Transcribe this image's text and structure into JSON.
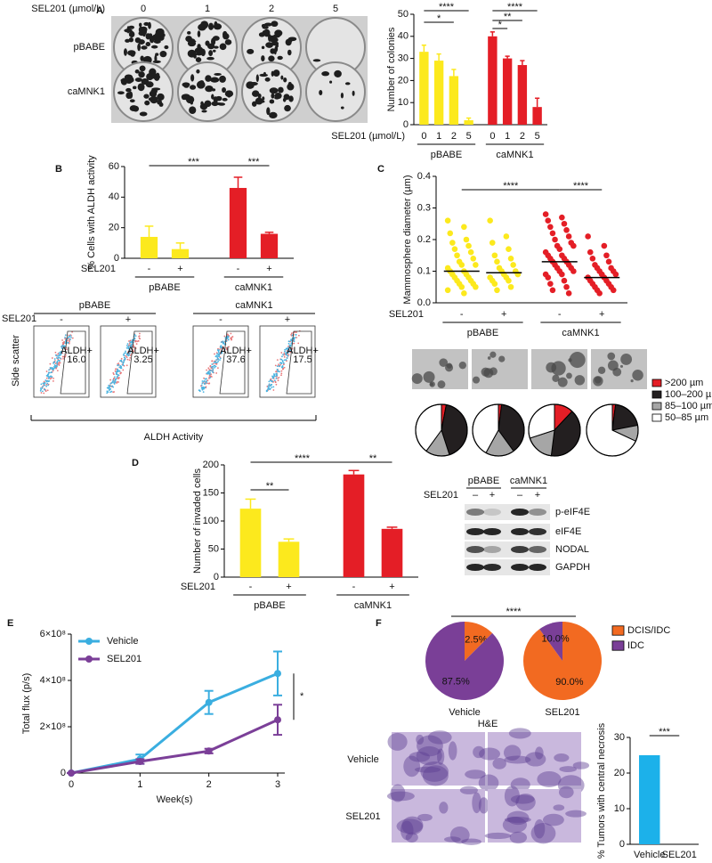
{
  "panel_labels": [
    "A",
    "B",
    "C",
    "D",
    "E",
    "F"
  ],
  "plates": {
    "dose_label": "SEL201 (µmol/L)",
    "doses": [
      "0",
      "1",
      "2",
      "5"
    ],
    "rows": [
      "pBABE",
      "caMNK1"
    ]
  },
  "flow": {
    "groups": [
      "pBABE",
      "caMNK1"
    ],
    "treatment": "SEL201",
    "signs": [
      "-",
      "+",
      "-",
      "+"
    ],
    "gate": "ALDH+",
    "gate_values": [
      "16.0",
      "3.25",
      "37.6",
      "17.5"
    ],
    "y_label": "Side scatter",
    "x_label": "ALDH Activity"
  },
  "western": {
    "groups": [
      "pBABE",
      "caMNK1"
    ],
    "treatment": "SEL201",
    "signs": [
      "–",
      "+",
      "–",
      "+"
    ],
    "proteins": [
      "p-eIF4E",
      "eIF4E",
      "NODAL",
      "GAPDH"
    ]
  },
  "histology": {
    "title": "H&E",
    "rows": [
      "Vehicle",
      "SEL201"
    ]
  },
  "chart_data": [
    {
      "type": "bar",
      "y_label": "Number of colonies",
      "x_label": "SEL201 (µmol/L)",
      "categories": [
        "0",
        "1",
        "2",
        "5",
        "0",
        "1",
        "2",
        "5"
      ],
      "groups": [
        "pBABE",
        "caMNK1"
      ],
      "colors": [
        "#fce91d",
        "#e41e26"
      ],
      "values": [
        33,
        29,
        22,
        2,
        40,
        30,
        27,
        8
      ],
      "errors": [
        3,
        3,
        3,
        1,
        2,
        1,
        2,
        4
      ],
      "ylim": [
        0,
        50
      ],
      "yticks": [
        0,
        10,
        20,
        30,
        40,
        50
      ],
      "significance": [
        "****",
        "****",
        "*",
        "**",
        "*"
      ]
    },
    {
      "type": "bar",
      "y_label": "% Cells with ALDH activity",
      "x_label": "SEL201",
      "categories": [
        "-",
        "+",
        "-",
        "+"
      ],
      "groups": [
        "pBABE",
        "caMNK1"
      ],
      "colors": [
        "#fce91d",
        "#e41e26"
      ],
      "values": [
        14,
        6,
        46,
        16
      ],
      "errors": [
        7,
        4,
        7,
        1
      ],
      "ylim": [
        0,
        60
      ],
      "yticks": [
        0,
        20,
        40,
        60
      ],
      "significance": [
        "***",
        "***"
      ]
    },
    {
      "type": "strip",
      "y_label": "Mammosphere diameter (µm)",
      "x_label": "SEL201",
      "categories": [
        "-",
        "+",
        "-",
        "+"
      ],
      "groups": [
        "pBABE",
        "caMNK1"
      ],
      "colors": [
        "#fce91d",
        "#e41e26"
      ],
      "values": [
        [
          0.26,
          0.24,
          0.22,
          0.2,
          0.19,
          0.18,
          0.17,
          0.16,
          0.15,
          0.14,
          0.13,
          0.12,
          0.12,
          0.11,
          0.1,
          0.1,
          0.09,
          0.09,
          0.08,
          0.08,
          0.07,
          0.07,
          0.06,
          0.06,
          0.05,
          0.05,
          0.04,
          0.03
        ],
        [
          0.26,
          0.21,
          0.19,
          0.17,
          0.15,
          0.14,
          0.13,
          0.12,
          0.11,
          0.1,
          0.1,
          0.09,
          0.09,
          0.08,
          0.08,
          0.07,
          0.07,
          0.06,
          0.05,
          0.04
        ],
        [
          0.28,
          0.27,
          0.26,
          0.25,
          0.24,
          0.23,
          0.22,
          0.21,
          0.2,
          0.19,
          0.18,
          0.18,
          0.17,
          0.16,
          0.15,
          0.15,
          0.14,
          0.14,
          0.13,
          0.13,
          0.12,
          0.12,
          0.11,
          0.11,
          0.1,
          0.1,
          0.09,
          0.09,
          0.08,
          0.07,
          0.06,
          0.05,
          0.04,
          0.03
        ],
        [
          0.21,
          0.18,
          0.16,
          0.15,
          0.14,
          0.13,
          0.12,
          0.11,
          0.11,
          0.1,
          0.1,
          0.09,
          0.09,
          0.08,
          0.08,
          0.07,
          0.07,
          0.06,
          0.06,
          0.05,
          0.05,
          0.04,
          0.04,
          0.03
        ]
      ],
      "medians": [
        0.1,
        0.095,
        0.13,
        0.08
      ],
      "ylim": [
        0,
        0.4
      ],
      "yticks": [
        {
          "value": 0,
          "label": "0.0"
        },
        0.1,
        0.2,
        0.3,
        0.4
      ],
      "significance": [
        "****",
        "****"
      ]
    },
    {
      "type": "pie",
      "categories": [
        ">200 µm",
        "100–200 µm",
        "85–100 µm",
        "50–85 µm"
      ],
      "colors": [
        "#e41e26",
        "#231f20",
        "#a6a6a6",
        "#ffffff"
      ],
      "pies": [
        {
          "values": [
            3,
            42,
            15,
            40
          ]
        },
        {
          "values": [
            2,
            38,
            18,
            42
          ]
        },
        {
          "values": [
            12,
            40,
            18,
            30
          ]
        },
        {
          "values": [
            2,
            20,
            10,
            68
          ]
        }
      ]
    },
    {
      "type": "bar",
      "y_label": "Number of invaded cells",
      "x_label": "SEL201",
      "categories": [
        "-",
        "+",
        "-",
        "+"
      ],
      "groups": [
        "pBABE",
        "caMNK1"
      ],
      "colors": [
        "#fce91d",
        "#e41e26"
      ],
      "values": [
        122,
        63,
        183,
        86
      ],
      "errors": [
        17,
        5,
        7,
        3
      ],
      "ylim": [
        0,
        200
      ],
      "yticks": [
        0,
        50,
        100,
        150,
        200
      ],
      "significance": [
        "****",
        "**",
        "**"
      ]
    },
    {
      "type": "line",
      "x_label": "Week(s)",
      "y_label": "Total flux (p/s)",
      "x": [
        0,
        1,
        2,
        3
      ],
      "xlim": [
        0,
        3
      ],
      "xticks": [
        0,
        1,
        2,
        3
      ],
      "ylim": [
        0,
        600000000
      ],
      "yticks": [
        0,
        {
          "value": 200000000,
          "label": "2×10⁸"
        },
        {
          "value": 400000000,
          "label": "4×10⁸"
        },
        {
          "value": 600000000,
          "label": "6×10⁸"
        }
      ],
      "series": [
        {
          "name": "Vehicle",
          "color": "#3aaee0",
          "values": [
            0,
            60000000,
            305000000,
            430000000
          ],
          "errors": [
            0,
            20000000,
            50000000,
            95000000
          ]
        },
        {
          "name": "SEL201",
          "color": "#7b3f98",
          "values": [
            0,
            50000000,
            95000000,
            230000000
          ],
          "errors": [
            0,
            10000000,
            10000000,
            65000000
          ]
        }
      ],
      "significance": [
        "*"
      ]
    },
    {
      "type": "pie",
      "categories": [
        "DCIS/IDC",
        "IDC"
      ],
      "colors": [
        "#f26a21",
        "#7a3f97"
      ],
      "pies": [
        {
          "name": "Vehicle",
          "values": [
            12.5,
            87.5
          ],
          "value_labels": [
            "12.5%",
            "87.5%"
          ]
        },
        {
          "name": "SEL201",
          "values": [
            90,
            10
          ],
          "value_labels": [
            "90.0%",
            "10.0%"
          ]
        }
      ],
      "significance": [
        "****"
      ]
    },
    {
      "type": "bar",
      "y_label": "% Tumors with central necrosis",
      "categories": [
        "Vehicle",
        "SEL201"
      ],
      "color": "#1cb1ea",
      "values": [
        25,
        0
      ],
      "ylim": [
        0,
        30
      ],
      "yticks": [
        0,
        10,
        20,
        30
      ],
      "significance": [
        "***"
      ]
    }
  ]
}
